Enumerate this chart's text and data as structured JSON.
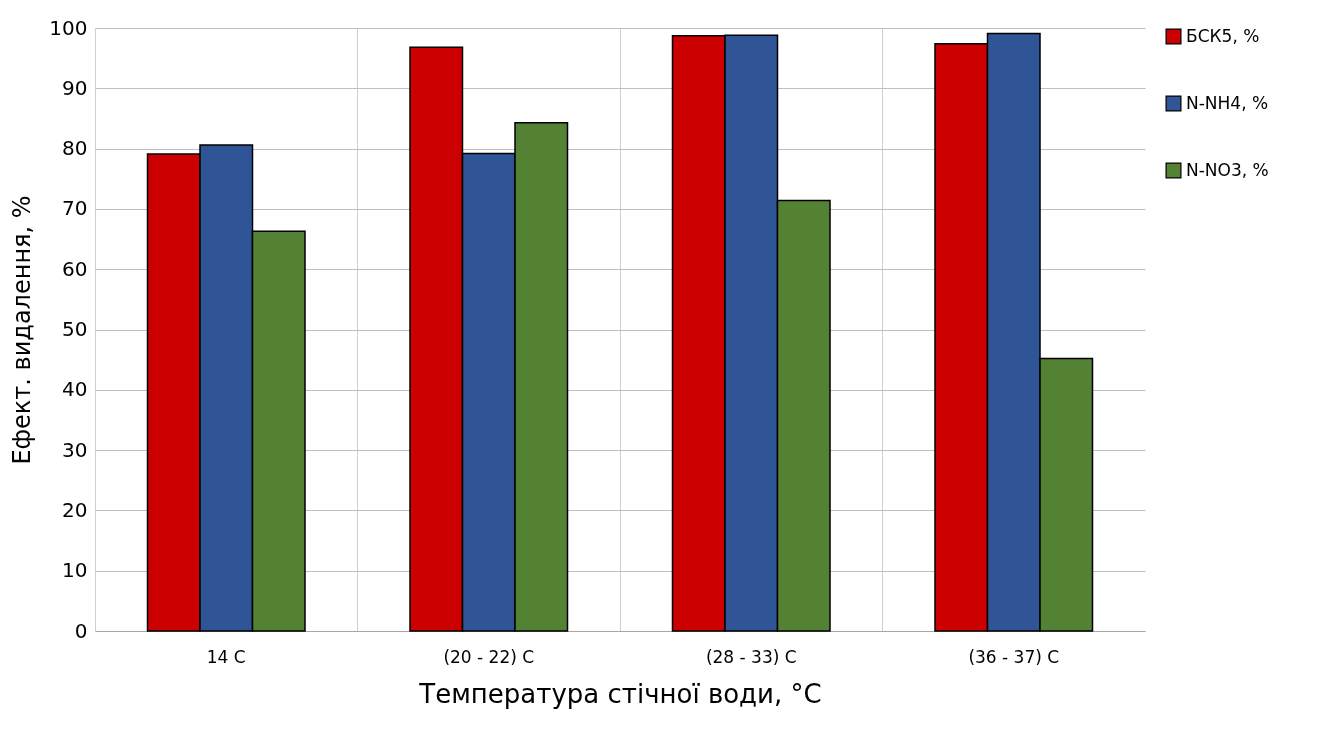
{
  "chart_data": {
    "type": "bar",
    "xlabel": "Температура стічної води, °C",
    "ylabel": "Ефект. видалення, %",
    "categories": [
      "14 C",
      "(20 - 22) C",
      "(28 - 33) C",
      "(36 - 37) C"
    ],
    "series": [
      {
        "name": "БСК5, %",
        "color": "#cc0000",
        "values": [
          79.1,
          96.8,
          98.7,
          97.4
        ]
      },
      {
        "name": "N-NH4, %",
        "color": "#2f5597",
        "values": [
          80.6,
          79.2,
          98.8,
          99.1
        ]
      },
      {
        "name": "N-NO3, %",
        "color": "#548235",
        "values": [
          66.3,
          84.3,
          71.4,
          45.2
        ]
      }
    ],
    "ylim": [
      0,
      100
    ],
    "yticks": [
      0,
      10,
      20,
      30,
      40,
      50,
      60,
      70,
      80,
      90,
      100
    ],
    "grid": true,
    "legend": "right"
  }
}
